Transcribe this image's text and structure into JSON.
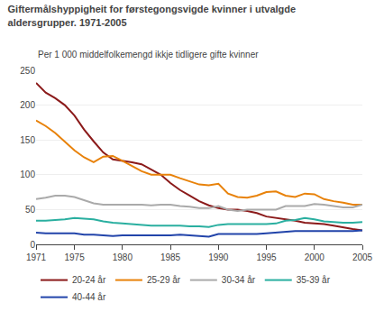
{
  "chart_data": {
    "type": "line",
    "title": "Giftermålshyppigheit for førstegongsvigde kvinner i utvalgde\naldersgrupper. 1971-2005",
    "subtitle": "Per 1 000 middelfolkemengd ikkje tidligere gifte kvinner",
    "x": [
      1971,
      1972,
      1973,
      1974,
      1975,
      1976,
      1977,
      1978,
      1979,
      1980,
      1981,
      1982,
      1983,
      1984,
      1985,
      1986,
      1987,
      1988,
      1989,
      1990,
      1991,
      1992,
      1993,
      1994,
      1995,
      1996,
      1997,
      1998,
      1999,
      2000,
      2001,
      2002,
      2003,
      2004,
      2005
    ],
    "series": [
      {
        "name": "20-24 år",
        "color": "#8B1A1A",
        "values": [
          232,
          218,
          210,
          200,
          185,
          165,
          148,
          132,
          122,
          120,
          118,
          115,
          108,
          100,
          88,
          78,
          70,
          62,
          56,
          52,
          50,
          50,
          48,
          45,
          40,
          38,
          36,
          34,
          31,
          30,
          29,
          27,
          24,
          22,
          20
        ]
      },
      {
        "name": "25-29 år",
        "color": "#E8820A",
        "values": [
          178,
          170,
          160,
          148,
          135,
          125,
          118,
          126,
          127,
          120,
          112,
          105,
          100,
          100,
          100,
          95,
          91,
          86,
          85,
          87,
          73,
          68,
          67,
          70,
          75,
          76,
          70,
          68,
          73,
          72,
          65,
          62,
          60,
          57,
          57
        ]
      },
      {
        "name": "30-34 år",
        "color": "#AAAAAA",
        "values": [
          65,
          67,
          70,
          70,
          68,
          63,
          59,
          57,
          57,
          57,
          57,
          57,
          56,
          57,
          57,
          55,
          54,
          52,
          52,
          55,
          50,
          48,
          50,
          50,
          50,
          50,
          55,
          55,
          55,
          58,
          57,
          55,
          53,
          53,
          57
        ]
      },
      {
        "name": "35-39 år",
        "color": "#2AAFA0",
        "values": [
          34,
          34,
          35,
          36,
          38,
          37,
          36,
          33,
          31,
          30,
          29,
          28,
          27,
          27,
          27,
          27,
          26,
          26,
          25,
          28,
          29,
          29,
          29,
          29,
          29,
          30,
          34,
          35,
          38,
          36,
          33,
          32,
          31,
          31,
          32
        ]
      },
      {
        "name": "40-44 år",
        "color": "#2244AA",
        "values": [
          17,
          16,
          16,
          16,
          16,
          14,
          14,
          13,
          12,
          13,
          13,
          13,
          13,
          13,
          13,
          14,
          13,
          12,
          11,
          15,
          15,
          15,
          15,
          15,
          16,
          17,
          18,
          19,
          19,
          19,
          19,
          19,
          19,
          19,
          20
        ]
      }
    ],
    "xlim": [
      1971,
      2005
    ],
    "ylim": [
      0,
      250
    ],
    "xticks": [
      1971,
      1975,
      1980,
      1985,
      1990,
      1995,
      2000,
      2005
    ],
    "yticks": [
      0,
      50,
      100,
      150,
      200,
      250
    ],
    "grid": true,
    "legend": "lower left"
  }
}
